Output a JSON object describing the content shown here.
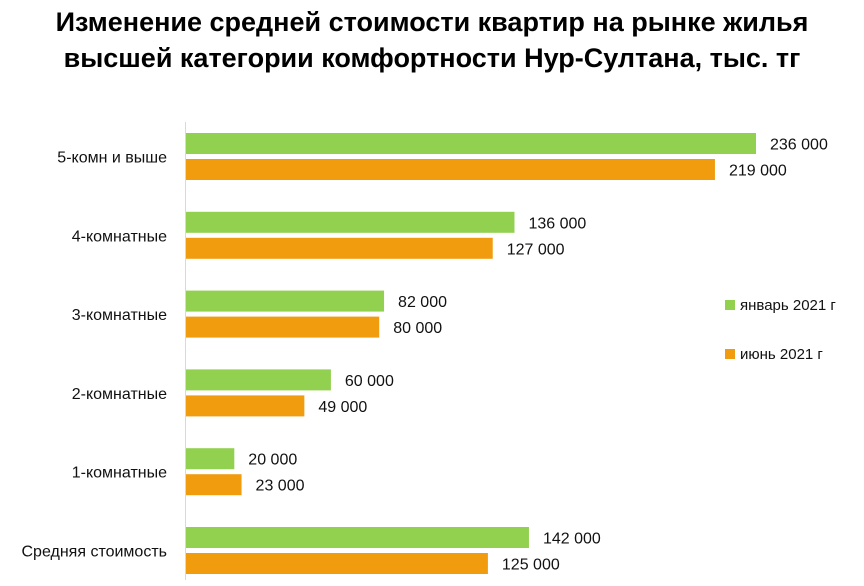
{
  "chart_data": {
    "type": "bar",
    "orientation": "horizontal",
    "title_lines": [
      "Изменение средней стоимости квартир на рынке жилья",
      "высшей категории комфортности Нур-Султана, тыс. тг"
    ],
    "categories": [
      "5-комн и выше",
      "4-комнатные",
      "3-комнатные",
      "2-комнатные",
      "1-комнатные",
      "Средняя стоимость"
    ],
    "series": [
      {
        "name": "январь 2021 г",
        "color": "#92d050",
        "values": [
          236000,
          136000,
          82000,
          60000,
          20000,
          142000
        ],
        "labels": [
          "236 000",
          "136 000",
          "82 000",
          "60 000",
          "20 000",
          "142 000"
        ]
      },
      {
        "name": "июнь 2021 г",
        "color": "#f09c0e",
        "values": [
          219000,
          127000,
          80000,
          49000,
          23000,
          125000
        ],
        "labels": [
          "219 000",
          "127 000",
          "80 000",
          "49 000",
          "23 000",
          "125 000"
        ]
      }
    ],
    "xlim": [
      0,
      236000
    ],
    "grid": false,
    "legend_position": "right"
  }
}
